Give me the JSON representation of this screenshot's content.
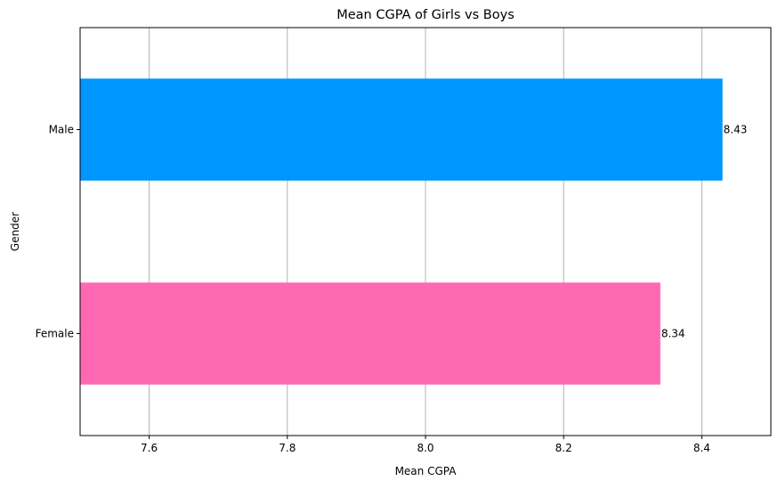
{
  "chart_data": {
    "type": "bar",
    "orientation": "horizontal",
    "title": "Mean CGPA of Girls vs Boys",
    "xlabel": "Mean CGPA",
    "ylabel": "Gender",
    "categories": [
      "Female",
      "Male"
    ],
    "values": [
      8.34,
      8.43
    ],
    "value_labels": [
      "8.34",
      "8.43"
    ],
    "colors": [
      "#ff69b4",
      "#0096ff"
    ],
    "xlim": [
      7.5,
      8.5
    ],
    "xticks": [
      7.6,
      7.8,
      8.0,
      8.2,
      8.4
    ],
    "xtick_labels": [
      "7.6",
      "7.8",
      "8.0",
      "8.2",
      "8.4"
    ],
    "grid": {
      "x": true,
      "y": false,
      "color": "#b0b0b0"
    }
  }
}
